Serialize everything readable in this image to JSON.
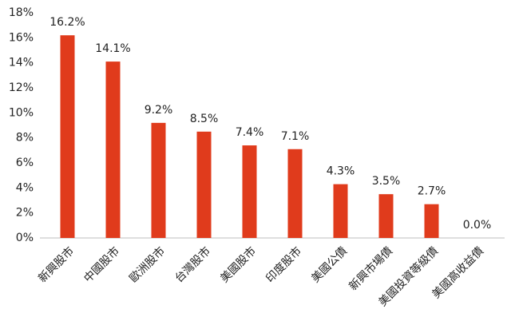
{
  "chart_data": {
    "type": "bar",
    "categories": [
      "新興股市",
      "中國股市",
      "歐洲股市",
      "台灣股市",
      "美國股市",
      "印度股市",
      "美國公債",
      "新興市場債",
      "美國投資等級債",
      "美國高收益債"
    ],
    "values": [
      16.2,
      14.1,
      9.2,
      8.5,
      7.4,
      7.1,
      4.3,
      3.5,
      2.7,
      0.0
    ],
    "value_labels": [
      "16.2%",
      "14.1%",
      "9.2%",
      "8.5%",
      "7.4%",
      "7.1%",
      "4.3%",
      "3.5%",
      "2.7%",
      "0.0%"
    ],
    "color": "#e03b1c",
    "ylim": [
      0,
      18
    ],
    "yticks": [
      {
        "value": 0,
        "label": "0%"
      },
      {
        "value": 2,
        "label": "2%"
      },
      {
        "value": 4,
        "label": "4%"
      },
      {
        "value": 6,
        "label": "6%"
      },
      {
        "value": 8,
        "label": "8%"
      },
      {
        "value": 10,
        "label": "10%"
      },
      {
        "value": 12,
        "label": "12%"
      },
      {
        "value": 14,
        "label": "14%"
      },
      {
        "value": 16,
        "label": "16%"
      },
      {
        "value": 18,
        "label": "18%"
      }
    ],
    "grid": false
  }
}
